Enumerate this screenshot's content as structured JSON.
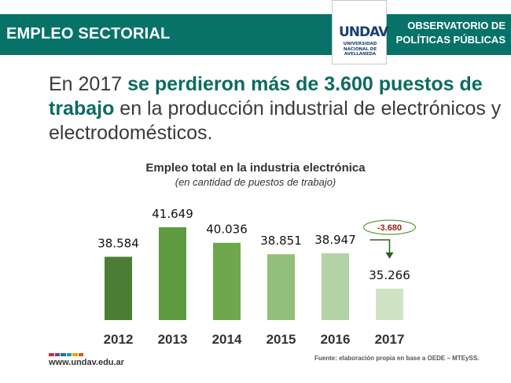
{
  "header": {
    "section_title": "EMPLEO SECTORIAL",
    "observatory_line1": "OBSERVATORIO DE",
    "observatory_line2": "POLÍTICAS PÚBLICAS",
    "logo_mark": "UNDAV",
    "logo_line1": "UNIVERSIDAD",
    "logo_line2": "NACIONAL DE",
    "logo_line3": "AVELLANEDA"
  },
  "headline": {
    "part1": "En 2017 ",
    "part2": "se perdieron más de 3.600 puestos de trabajo",
    "part3": " en la producción industrial de electrónicos y electrodomésticos."
  },
  "chart_data": {
    "type": "bar",
    "title": "Empleo total en la industria electrónica",
    "subtitle": "(en cantidad de puestos de trabajo)",
    "categories": [
      "2012",
      "2013",
      "2014",
      "2015",
      "2016",
      "2017"
    ],
    "values": [
      38584,
      41649,
      40036,
      38851,
      38947,
      35266
    ],
    "value_labels": [
      "38.584",
      "41.649",
      "40.036",
      "38.851",
      "38.947",
      "35.266"
    ],
    "bar_colors": [
      "#4c7d34",
      "#5e9a3f",
      "#6fa64e",
      "#92c07b",
      "#b4d3a4",
      "#d0e3c4"
    ],
    "ylim": [
      32000,
      43000
    ],
    "xlabel": "",
    "ylabel": "",
    "annotation": {
      "text": "-3.680",
      "from": "2016",
      "to": "2017"
    }
  },
  "footer": {
    "website": "www.undav.edu.ar",
    "source": "Fuente: elaboración propia en base a OEDE – MTEySS."
  },
  "colors": {
    "brand": "#077368",
    "annotation": "#9c1b1b",
    "arrow": "#2f5f1f",
    "logo_stripes": [
      "#d62d3a",
      "#7a3d8f",
      "#1d6db4",
      "#1aa39a",
      "#f2a100",
      "#e94e1b"
    ]
  }
}
